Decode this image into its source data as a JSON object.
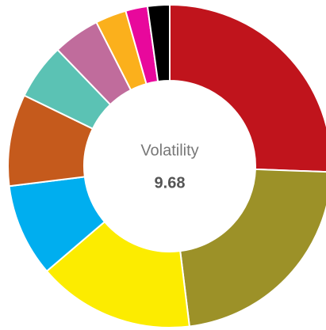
{
  "chart_data": {
    "type": "donut",
    "center_label": "Volatility",
    "center_value": 9.68,
    "values": [
      25.6,
      22.5,
      15.7,
      9.3,
      9.2,
      5.6,
      4.7,
      3.1,
      2.2,
      2.2
    ],
    "colors": [
      "#c0141c",
      "#9c9128",
      "#fcec00",
      "#00aeef",
      "#c55a1c",
      "#5bc2b4",
      "#c06c9c",
      "#fbb01c",
      "#e8089c",
      "#000000"
    ]
  }
}
